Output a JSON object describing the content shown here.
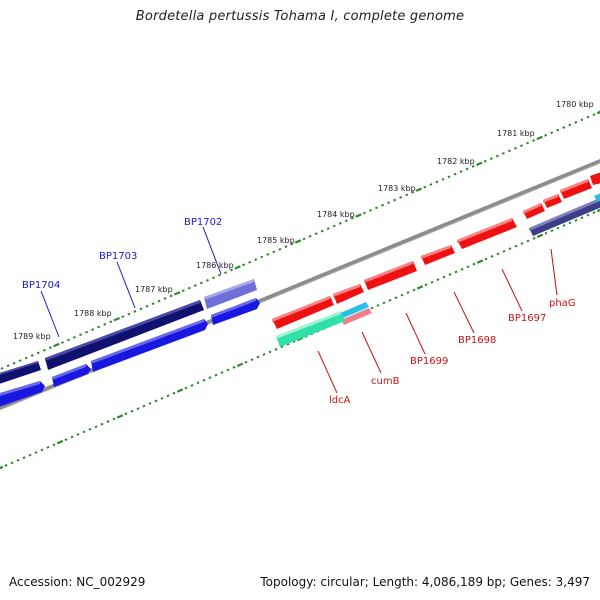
{
  "title": "Bordetella pertussis Tohama I, complete genome",
  "footer": {
    "accession": "Accession: NC_002929",
    "summary": "Topology: circular; Length: 4,086,189 bp; Genes: 3,497"
  },
  "colors": {
    "backbone": "#8c8c8c",
    "tick": "#2a8a2a",
    "navy": "#101070",
    "blue": "#1818e0",
    "lavender": "#6f6fd8",
    "slate": "#3e3e88",
    "red": "#ee1111",
    "cyan": "#28c0e8",
    "aqua": "#30e0a8",
    "pink": "#ee7f8f",
    "label_top": "#1a1acc",
    "label_bottom": "#cc1111"
  },
  "kbp_labels": [
    "1780 kbp",
    "1781 kbp",
    "1782 kbp",
    "1783 kbp",
    "1784 kbp",
    "1785 kbp",
    "1786 kbp",
    "1787 kbp",
    "1788 kbp",
    "1789 kbp"
  ],
  "genes_top_strand": [
    "BP1702",
    "BP1703",
    "BP1704"
  ],
  "genes_bottom_strand": [
    "phaG",
    "BP1697",
    "BP1698",
    "BP1699",
    "cumB",
    "ldcA"
  ]
}
